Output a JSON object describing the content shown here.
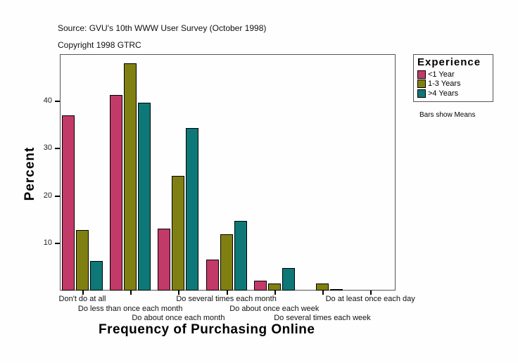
{
  "header": {
    "source": "Source: GVU's 10th WWW User Survey (October 1998)",
    "copyright": "Copyright 1998 GTRC"
  },
  "legend": {
    "title": "Experience",
    "items": [
      {
        "label": "<1 Year",
        "color": "#c23a68"
      },
      {
        "label": "1-3 Years",
        "color": "#808012"
      },
      {
        "label": ">4 Years",
        "color": "#0e7878"
      }
    ]
  },
  "note": "Bars show Means",
  "axes": {
    "ylabel": "Percent",
    "xlabel": "Frequency of Purchasing Online",
    "yticks": [
      "10",
      "20",
      "30",
      "40"
    ]
  },
  "chart_data": {
    "type": "bar",
    "title": "",
    "xlabel": "Frequency of Purchasing Online",
    "ylabel": "Percent",
    "ylim": [
      0,
      50
    ],
    "grid": false,
    "legend_position": "right",
    "legend_title": "Experience",
    "annotations": [
      "Bars show Means",
      "Source: GVU's 10th WWW User Survey (October 1998)",
      "Copyright 1998 GTRC"
    ],
    "categories": [
      "Don't do at all",
      "Do less than once each month",
      "Do about once each month",
      "Do several times each month",
      "Do about once each week",
      "Do several times each week",
      "Do at least once each day"
    ],
    "series": [
      {
        "name": "<1 Year",
        "color": "#c23a68",
        "values": [
          37.0,
          41.4,
          13.1,
          6.5,
          2.1,
          0.0,
          0.0
        ]
      },
      {
        "name": "1-3 Years",
        "color": "#808012",
        "values": [
          12.8,
          48.1,
          24.3,
          11.9,
          1.5,
          1.5,
          0.0
        ]
      },
      {
        "name": ">4 Years",
        "color": "#0e7878",
        "values": [
          6.2,
          39.7,
          34.4,
          14.7,
          4.8,
          0.2,
          0.0
        ]
      }
    ]
  }
}
